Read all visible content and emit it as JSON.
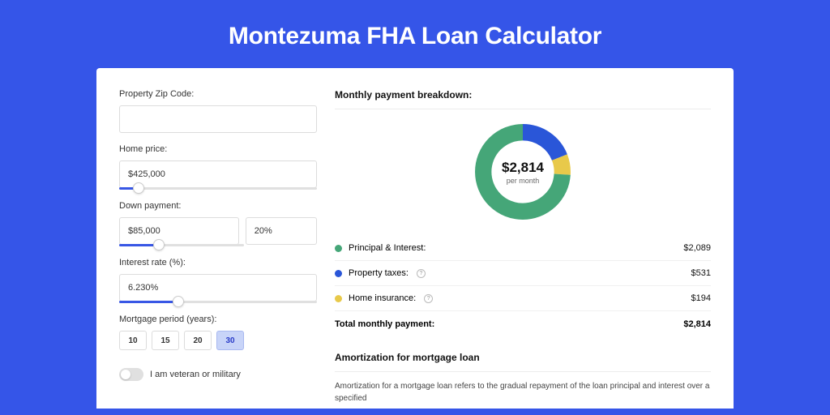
{
  "title": "Montezuma FHA Loan Calculator",
  "colors": {
    "bg": "#3555e8",
    "card": "#ffffff",
    "accent": "#3857e5",
    "green": "#45a678",
    "blue": "#2a56d8",
    "yellow": "#e8c94a",
    "border": "#dcdcdc"
  },
  "form": {
    "zip_label": "Property Zip Code:",
    "zip_value": "",
    "home_label": "Home price:",
    "home_value": "$425,000",
    "home_slider_pct": 10,
    "down_label": "Down payment:",
    "down_amount": "$85,000",
    "down_pct": "20%",
    "down_slider_pct": 20,
    "rate_label": "Interest rate (%):",
    "rate_value": "6.230%",
    "rate_slider_pct": 30,
    "period_label": "Mortgage period (years):",
    "periods": [
      "10",
      "15",
      "20",
      "30"
    ],
    "period_active_index": 3,
    "vet_label": "I am veteran or military",
    "vet_on": false
  },
  "breakdown": {
    "header": "Monthly payment breakdown:",
    "total_amount": "$2,814",
    "total_sub": "per month",
    "items": [
      {
        "label": "Principal & Interest:",
        "value": "$2,089",
        "color": "#45a678",
        "pct": 74,
        "help": false
      },
      {
        "label": "Property taxes:",
        "value": "$531",
        "color": "#2a56d8",
        "pct": 19,
        "help": true
      },
      {
        "label": "Home insurance:",
        "value": "$194",
        "color": "#e8c94a",
        "pct": 7,
        "help": true
      }
    ],
    "total_label": "Total monthly payment:",
    "total_value": "$2,814"
  },
  "amort": {
    "header": "Amortization for mortgage loan",
    "text": "Amortization for a mortgage loan refers to the gradual repayment of the loan principal and interest over a specified"
  },
  "donut": {
    "circumference": 301.6,
    "stroke_width": 20,
    "radius": 48
  }
}
